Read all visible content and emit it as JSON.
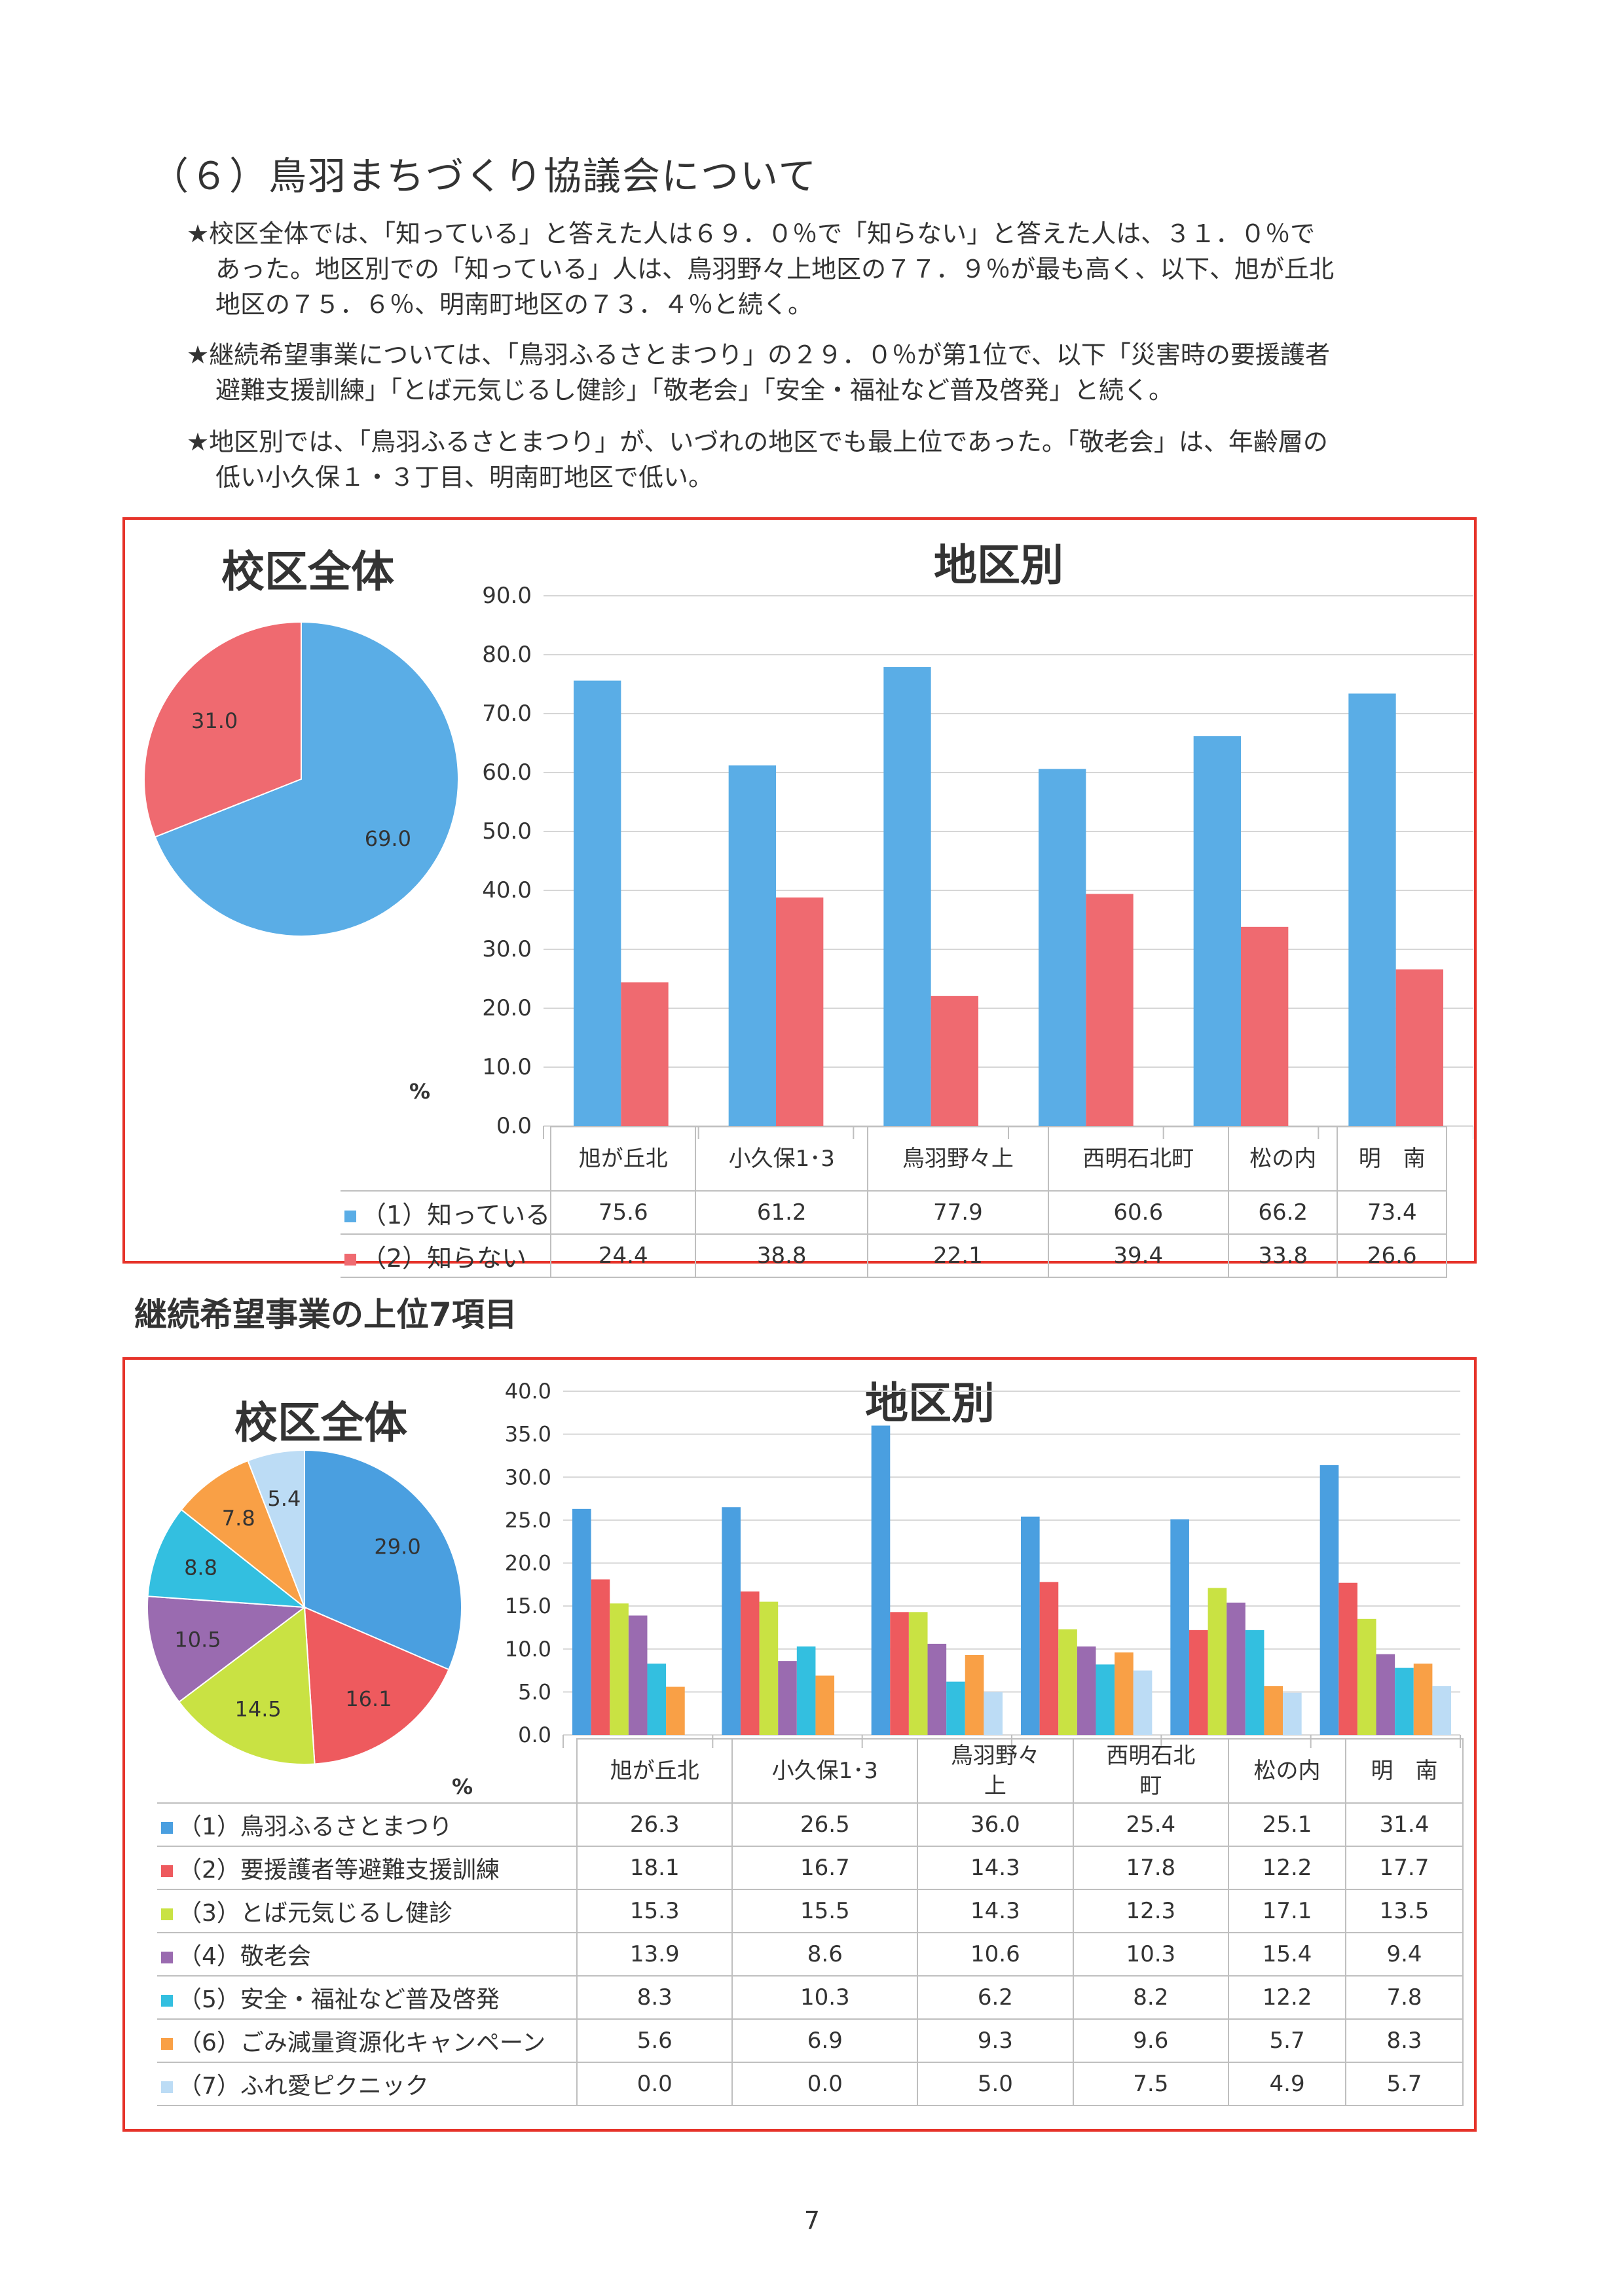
{
  "heading": "（６）鳥羽まちづくり協議会について",
  "paragraphs": [
    {
      "lines": [
        "★校区全体では、「知っている」と答えた人は６９．０％で「知らない」と答えた人は、３１．０％で",
        "あった。地区別での「知っている」人は、鳥羽野々上地区の７７．９％が最も高く、以下、旭が丘北",
        "地区の７５．６％、明南町地区の７３．４％と続く。"
      ]
    },
    {
      "lines": [
        "★継続希望事業については、「鳥羽ふるさとまつり」の２９．０％が第1位で、以下「災害時の要援護者",
        "避難支援訓練」「とば元気じるし健診」「敬老会」「安全・福祉など普及啓発」と続く。"
      ]
    },
    {
      "lines": [
        "★地区別では、「鳥羽ふるさとまつり」が、いづれの地区でも最上位であった。「敬老会」は、年齢層の",
        "低い小久保１・３丁目、明南町地区で低い。"
      ]
    }
  ],
  "box1": {
    "pie_title": "校区全体",
    "bar_title": "地区別",
    "unit": "%",
    "y_ticks": [
      "0.0",
      "10.0",
      "20.0",
      "30.0",
      "40.0",
      "50.0",
      "60.0",
      "70.0",
      "80.0",
      "90.0"
    ],
    "categories": [
      "旭が丘北",
      "小久保1･3",
      "鳥羽野々上",
      "西明石北町",
      "松の内",
      "明　南"
    ],
    "series_labels": [
      "（1）知っている",
      "（2）知らない"
    ]
  },
  "sub_heading": "継続希望事業の上位7項目",
  "box2": {
    "pie_title": "校区全体",
    "bar_title": "地区別",
    "unit": "%",
    "y_ticks": [
      "0.0",
      "5.0",
      "10.0",
      "15.0",
      "20.0",
      "25.0",
      "30.0",
      "35.0",
      "40.0"
    ],
    "categories": [
      "旭が丘北",
      "小久保1･3",
      "鳥羽野々\n上",
      "西明石北\n町",
      "松の内",
      "明　南"
    ],
    "series_labels": [
      "（1）鳥羽ふるさとまつり",
      "（2）要援護者等避難支援訓練",
      "（3）とば元気じるし健診",
      "（4）敬老会",
      "（5）安全・福祉など普及啓発",
      "（6）ごみ減量資源化キャンペーン",
      "（7）ふれ愛ピクニック"
    ]
  },
  "chart_data": [
    {
      "type": "pie",
      "title": "校区全体",
      "categories": [
        "（1）知っている",
        "（2）知らない"
      ],
      "values": [
        69.0,
        31.0
      ],
      "colors": [
        "#5aade6",
        "#ef6a70"
      ]
    },
    {
      "type": "bar",
      "title": "地区別",
      "ylabel": "%",
      "ylim": [
        0,
        90
      ],
      "categories": [
        "旭が丘北",
        "小久保1･3",
        "鳥羽野々上",
        "西明石北町",
        "松の内",
        "明　南"
      ],
      "series": [
        {
          "name": "（1）知っている",
          "color": "#5aade6",
          "values": [
            75.6,
            61.2,
            77.9,
            60.6,
            66.2,
            73.4
          ]
        },
        {
          "name": "（2）知らない",
          "color": "#ef6a70",
          "values": [
            24.4,
            38.8,
            22.1,
            39.4,
            33.8,
            26.6
          ]
        }
      ]
    },
    {
      "type": "pie",
      "title": "校区全体",
      "categories": [
        "（1）鳥羽ふるさとまつり",
        "（2）要援護者等避難支援訓練",
        "（3）とば元気じるし健診",
        "（4）敬老会",
        "（5）安全・福祉など普及啓発",
        "（6）ごみ減量資源化キャンペーン",
        "（7）ふれ愛ピクニック"
      ],
      "values": [
        29.0,
        16.1,
        14.5,
        10.5,
        8.8,
        7.8,
        5.4
      ],
      "colors": [
        "#4a9fe0",
        "#ee5a5e",
        "#c9e243",
        "#9a6bb0",
        "#33bfe0",
        "#f9a046",
        "#bcdcf5"
      ]
    },
    {
      "type": "bar",
      "title": "地区別",
      "ylabel": "%",
      "ylim": [
        0,
        40
      ],
      "categories": [
        "旭が丘北",
        "小久保1･3",
        "鳥羽野々上",
        "西明石北町",
        "松の内",
        "明　南"
      ],
      "series": [
        {
          "name": "（1）鳥羽ふるさとまつり",
          "color": "#4a9fe0",
          "values": [
            26.3,
            26.5,
            36.0,
            25.4,
            25.1,
            31.4
          ]
        },
        {
          "name": "（2）要援護者等避難支援訓練",
          "color": "#ee5a5e",
          "values": [
            18.1,
            16.7,
            14.3,
            17.8,
            12.2,
            17.7
          ]
        },
        {
          "name": "（3）とば元気じるし健診",
          "color": "#c9e243",
          "values": [
            15.3,
            15.5,
            14.3,
            12.3,
            17.1,
            13.5
          ]
        },
        {
          "name": "（4）敬老会",
          "color": "#9a6bb0",
          "values": [
            13.9,
            8.6,
            10.6,
            10.3,
            15.4,
            9.4
          ]
        },
        {
          "name": "（5）安全・福祉など普及啓発",
          "color": "#33bfe0",
          "values": [
            8.3,
            10.3,
            6.2,
            8.2,
            12.2,
            7.8
          ]
        },
        {
          "name": "（6）ごみ減量資源化キャンペーン",
          "color": "#f9a046",
          "values": [
            5.6,
            6.9,
            9.3,
            9.6,
            5.7,
            8.3
          ]
        },
        {
          "name": "（7）ふれ愛ピクニック",
          "color": "#bcdcf5",
          "values": [
            0.0,
            0.0,
            5.0,
            7.5,
            4.9,
            5.7
          ]
        }
      ]
    }
  ],
  "page_number": "7"
}
